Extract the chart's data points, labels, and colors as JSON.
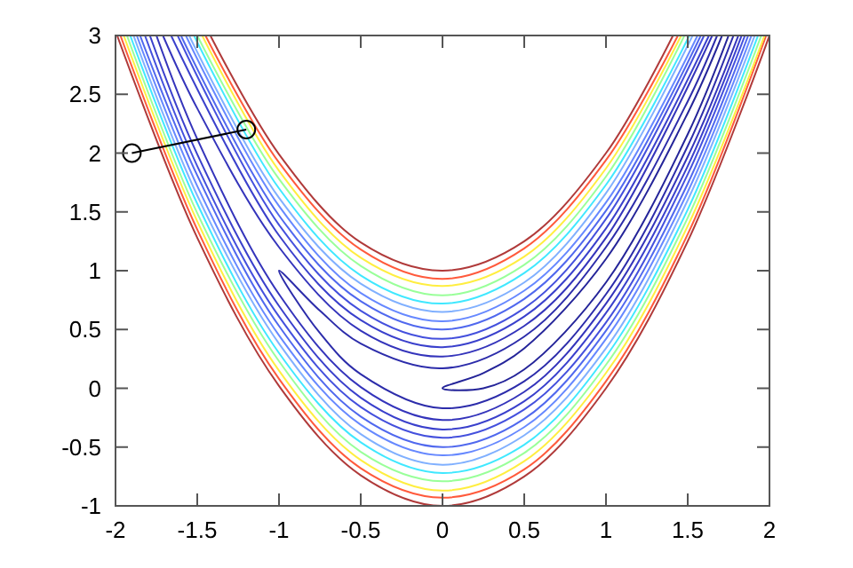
{
  "chart_data": {
    "type": "line",
    "xlim": [
      -2,
      2
    ],
    "ylim": [
      -1,
      3
    ],
    "xticks": [
      -2,
      -1.5,
      -1,
      -0.5,
      0,
      0.5,
      1,
      1.5,
      2
    ],
    "yticks": [
      -1,
      -0.5,
      0,
      0.5,
      1,
      1.5,
      2,
      2.5,
      3
    ],
    "marker": "none",
    "series": [
      {
        "color": "#b03a3a",
        "x": [
          -1.99,
          -1.5,
          -1,
          -0.5,
          0,
          0.5,
          1,
          1.5,
          2,
          null,
          1.41,
          1,
          0.5,
          0,
          -0.5,
          -1,
          -1.42
        ],
        "values": [
          3,
          1.28,
          0.02,
          -0.74,
          -1,
          -0.75,
          0,
          1.25,
          3,
          null,
          3,
          2,
          1.25,
          1,
          1.24,
          1.99,
          3
        ]
      },
      {
        "color": "#ff5a3c",
        "x": [
          -1.97,
          -1.5,
          -1,
          -0.5,
          0,
          0.5,
          1,
          1.5,
          1.98,
          null,
          1.44,
          1,
          0.5,
          0,
          -0.5,
          -1,
          -1.45
        ],
        "values": [
          3,
          1.35,
          0.08,
          -0.68,
          -0.93,
          -0.69,
          0.06,
          1.31,
          3,
          null,
          3,
          1.94,
          1.19,
          0.93,
          1.18,
          1.92,
          3
        ]
      },
      {
        "color": "#ffee40",
        "x": [
          -1.95,
          -1.5,
          -1,
          -0.5,
          0,
          0.5,
          1,
          1.5,
          1.97,
          null,
          1.46,
          1,
          0.5,
          0,
          -0.5,
          -1,
          -1.47
        ],
        "values": [
          3,
          1.42,
          0.15,
          -0.61,
          -0.87,
          -0.62,
          0.13,
          1.38,
          3,
          null,
          3,
          1.87,
          1.12,
          0.87,
          1.11,
          1.85,
          3
        ]
      },
      {
        "color": "#99ff99",
        "x": [
          -1.93,
          -1.5,
          -1,
          -0.5,
          0,
          0.5,
          1,
          1.5,
          1.95,
          null,
          1.48,
          1,
          0.5,
          0,
          -0.5,
          -1,
          -1.5
        ],
        "values": [
          3,
          1.49,
          0.23,
          -0.54,
          -0.79,
          -0.55,
          0.2,
          1.45,
          3,
          null,
          3,
          1.8,
          1.05,
          0.79,
          1.04,
          1.78,
          3
        ]
      },
      {
        "color": "#40e8ff",
        "x": [
          -1.91,
          -1.5,
          -1,
          -0.5,
          0,
          0.5,
          1,
          1.5,
          1.93,
          null,
          1.51,
          1,
          0.5,
          0,
          -0.5,
          -1,
          -1.52
        ],
        "values": [
          3,
          1.57,
          0.3,
          -0.46,
          -0.72,
          -0.48,
          0.27,
          1.52,
          3,
          null,
          3,
          1.73,
          0.98,
          0.72,
          0.96,
          1.7,
          3
        ]
      },
      {
        "color": "#80b0ff",
        "x": [
          -1.89,
          -1.5,
          -1,
          -0.5,
          0,
          0.5,
          1,
          1.5,
          1.91,
          null,
          1.53,
          1,
          0.5,
          0,
          -0.5,
          -1,
          -1.55
        ],
        "values": [
          3,
          1.64,
          0.38,
          -0.39,
          -0.65,
          -0.4,
          0.34,
          1.6,
          3,
          null,
          3,
          1.66,
          0.9,
          0.65,
          0.89,
          1.62,
          3
        ]
      },
      {
        "color": "#6688ff",
        "x": [
          -1.87,
          -1.5,
          -1,
          -0.5,
          0,
          0.5,
          1,
          1.5,
          1.89,
          null,
          1.56,
          1,
          0.5,
          0,
          -0.5,
          -1,
          -1.57
        ],
        "values": [
          3,
          1.72,
          0.45,
          -0.31,
          -0.57,
          -0.33,
          0.42,
          1.67,
          3,
          null,
          3,
          1.58,
          0.83,
          0.57,
          0.81,
          1.55,
          3
        ]
      },
      {
        "color": "#5068ee",
        "x": [
          -1.85,
          -1.5,
          -1,
          -0.5,
          0,
          0.5,
          1,
          1.5,
          1.87,
          null,
          1.58,
          1,
          0.5,
          0,
          -0.5,
          -1,
          -1.6
        ],
        "values": [
          3,
          1.81,
          0.53,
          -0.24,
          -0.5,
          -0.26,
          0.49,
          1.74,
          3,
          null,
          3,
          1.51,
          0.76,
          0.5,
          0.74,
          1.47,
          3
        ]
      },
      {
        "color": "#4450dd",
        "x": [
          -1.82,
          -1.5,
          -1,
          -0.5,
          0,
          0.5,
          1,
          1.5,
          1.85,
          null,
          1.6,
          1,
          0.5,
          0,
          -0.5,
          -1,
          -1.62
        ],
        "values": [
          3,
          1.89,
          0.61,
          -0.16,
          -0.42,
          -0.18,
          0.56,
          1.82,
          3,
          null,
          3,
          1.44,
          0.68,
          0.42,
          0.66,
          1.39,
          3
        ]
      },
      {
        "color": "#3a40cc",
        "x": [
          -1.79,
          -1.5,
          -1,
          -0.5,
          0,
          0.5,
          1,
          1.5,
          1.83,
          null,
          1.63,
          1,
          0.5,
          0,
          -0.5,
          -1,
          -1.66
        ],
        "values": [
          3,
          1.99,
          0.7,
          -0.08,
          -0.35,
          -0.11,
          0.64,
          1.89,
          3,
          null,
          3,
          1.36,
          0.61,
          0.35,
          0.58,
          1.3,
          3
        ]
      },
      {
        "color": "#3434bb",
        "x": [
          -1.75,
          -1.5,
          -1,
          -0.5,
          0,
          0.5,
          1,
          1.5,
          1.81,
          null,
          1.65,
          1,
          0.5,
          0,
          -0.5,
          -1,
          -1.5,
          -1.71
        ],
        "values": [
          3,
          2.12,
          0.8,
          0.01,
          -0.27,
          -0.03,
          0.72,
          1.97,
          3,
          null,
          3,
          1.28,
          0.53,
          0.27,
          0.49,
          1.2,
          2.38,
          3
        ]
      },
      {
        "color": "#2c2caa",
        "x": [
          1.68,
          1.5,
          1,
          0.5,
          0,
          -0.5,
          -0.75,
          -1,
          -0.75,
          -0.5,
          0,
          0.5,
          1,
          1.5,
          1.78
        ],
        "values": [
          3,
          2.44,
          1.2,
          0.44,
          0.17,
          0.38,
          0.66,
          1,
          0.47,
          0.12,
          -0.17,
          0.06,
          0.8,
          2.06,
          3
        ]
      },
      {
        "color": "#242499",
        "x": [
          1.71,
          1.5,
          1,
          0.5,
          0.25,
          0,
          0.25,
          0.5,
          1,
          1.5,
          1.75
        ],
        "values": [
          3,
          2.34,
          1.1,
          0.34,
          0.13,
          0,
          0,
          0.16,
          0.9,
          2.16,
          3
        ]
      },
      {
        "color": "#000000",
        "marker": "circle",
        "x": [
          -1.9,
          -1.2
        ],
        "values": [
          2,
          2.2
        ]
      }
    ]
  }
}
